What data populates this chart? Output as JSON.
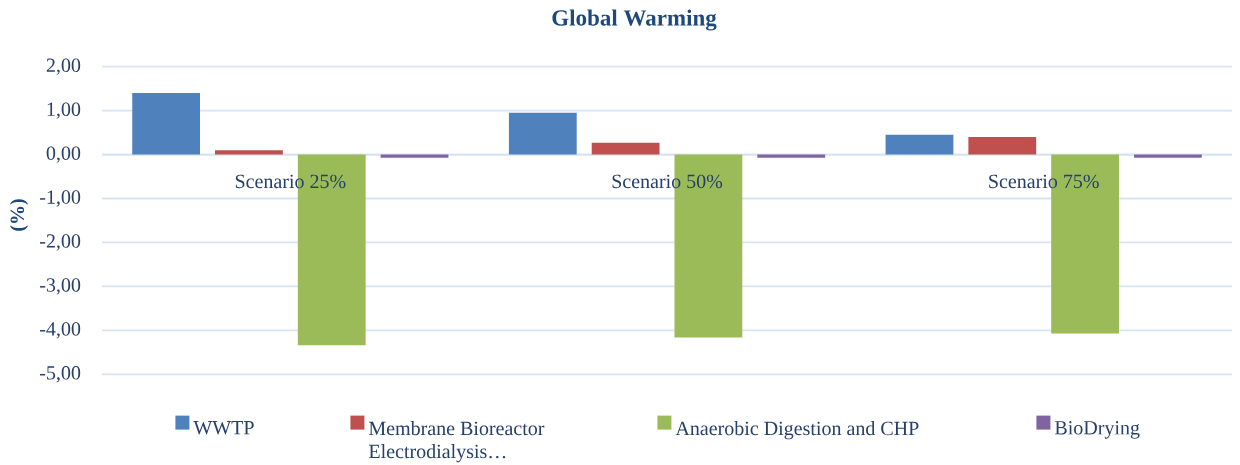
{
  "chart_data": {
    "type": "bar",
    "title": "Global Warming",
    "ylabel": "(%)",
    "categories": [
      "Scenario 25%",
      "Scenario 50%",
      "Scenario 75%"
    ],
    "series": [
      {
        "name": "WWTP",
        "color": "#4f81bd",
        "values": [
          1.4,
          0.95,
          0.45
        ]
      },
      {
        "name": "Membrane Bioreactor Electrodialysis…",
        "color": "#c0504d",
        "values": [
          0.1,
          0.27,
          0.4
        ]
      },
      {
        "name": "Anaerobic Digestion and CHP",
        "color": "#9bbb59",
        "values": [
          -4.34,
          -4.16,
          -4.07
        ]
      },
      {
        "name": "BioDrying",
        "color": "#8064a2",
        "values": [
          -0.07,
          -0.07,
          -0.07
        ]
      }
    ],
    "ylim": [
      -5,
      2
    ],
    "yticks": [
      {
        "value": -5,
        "label": "-5,00"
      },
      {
        "value": -4,
        "label": "-4,00"
      },
      {
        "value": -3,
        "label": "-3,00"
      },
      {
        "value": -2,
        "label": "-2,00"
      },
      {
        "value": -1,
        "label": "-1,00"
      },
      {
        "value": 0,
        "label": "0,00"
      },
      {
        "value": 1,
        "label": "1,00"
      },
      {
        "value": 2,
        "label": "2,00"
      }
    ],
    "grid": "y",
    "legend": "bottom"
  }
}
